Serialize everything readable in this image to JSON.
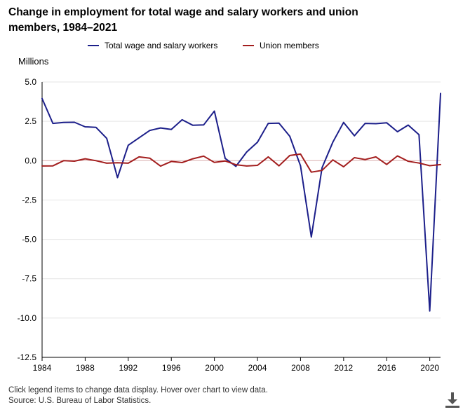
{
  "title": "Change in employment for total wage and salary workers and union members, 1984–2021",
  "unit_label": "Millions",
  "footnote": "Click legend items to change data display. Hover over chart to view data.",
  "source": "Source: U.S. Bureau of Labor Statistics.",
  "download_icon": "download-icon",
  "colors": {
    "total": "#1c1f8a",
    "union": "#a31e1e",
    "grid": "#e5e5e5",
    "axis": "#000000",
    "zero": "#d9b0b0"
  },
  "chart_data": {
    "type": "line",
    "title": "Change in employment for total wage and salary workers and union members, 1984–2021",
    "ylabel": "Millions",
    "xlabel": "",
    "x": [
      1984,
      1985,
      1986,
      1987,
      1988,
      1989,
      1990,
      1991,
      1992,
      1993,
      1994,
      1995,
      1996,
      1997,
      1998,
      1999,
      2000,
      2001,
      2002,
      2003,
      2004,
      2005,
      2006,
      2007,
      2008,
      2009,
      2010,
      2011,
      2012,
      2013,
      2014,
      2015,
      2016,
      2017,
      2018,
      2019,
      2020,
      2021
    ],
    "xlim": [
      1984,
      2021
    ],
    "ylim": [
      -12.5,
      5.0
    ],
    "xticks": [
      1984,
      1988,
      1992,
      1996,
      2000,
      2004,
      2008,
      2012,
      2016,
      2020
    ],
    "yticks": [
      5.0,
      2.5,
      0.0,
      -2.5,
      -5.0,
      -7.5,
      -10.0,
      -12.5
    ],
    "ytick_labels": [
      "5.0",
      "2.5",
      "0.0",
      "-2.5",
      "-5.0",
      "-7.5",
      "-10.0",
      "-12.5"
    ],
    "grid": true,
    "legend_position": "top",
    "series": [
      {
        "name": "Total wage and salary workers",
        "values": [
          3.95,
          2.37,
          2.43,
          2.44,
          2.15,
          2.12,
          1.42,
          -1.08,
          0.98,
          1.45,
          1.92,
          2.08,
          1.98,
          2.6,
          2.25,
          2.27,
          3.15,
          0.14,
          -0.36,
          0.55,
          1.17,
          2.37,
          2.38,
          1.55,
          -0.33,
          -4.85,
          -0.45,
          1.18,
          2.43,
          1.58,
          2.37,
          2.35,
          2.41,
          1.84,
          2.26,
          1.65,
          -9.55,
          4.27
        ]
      },
      {
        "name": "Union members",
        "values": [
          -0.34,
          -0.33,
          0.0,
          -0.03,
          0.12,
          0.0,
          -0.16,
          -0.13,
          -0.16,
          0.24,
          0.16,
          -0.35,
          -0.05,
          -0.12,
          0.12,
          0.29,
          -0.11,
          -0.02,
          -0.26,
          -0.34,
          -0.3,
          0.24,
          -0.33,
          0.33,
          0.42,
          -0.73,
          -0.62,
          0.05,
          -0.39,
          0.19,
          0.07,
          0.24,
          -0.24,
          0.3,
          -0.04,
          -0.15,
          -0.32,
          -0.25
        ]
      }
    ]
  }
}
